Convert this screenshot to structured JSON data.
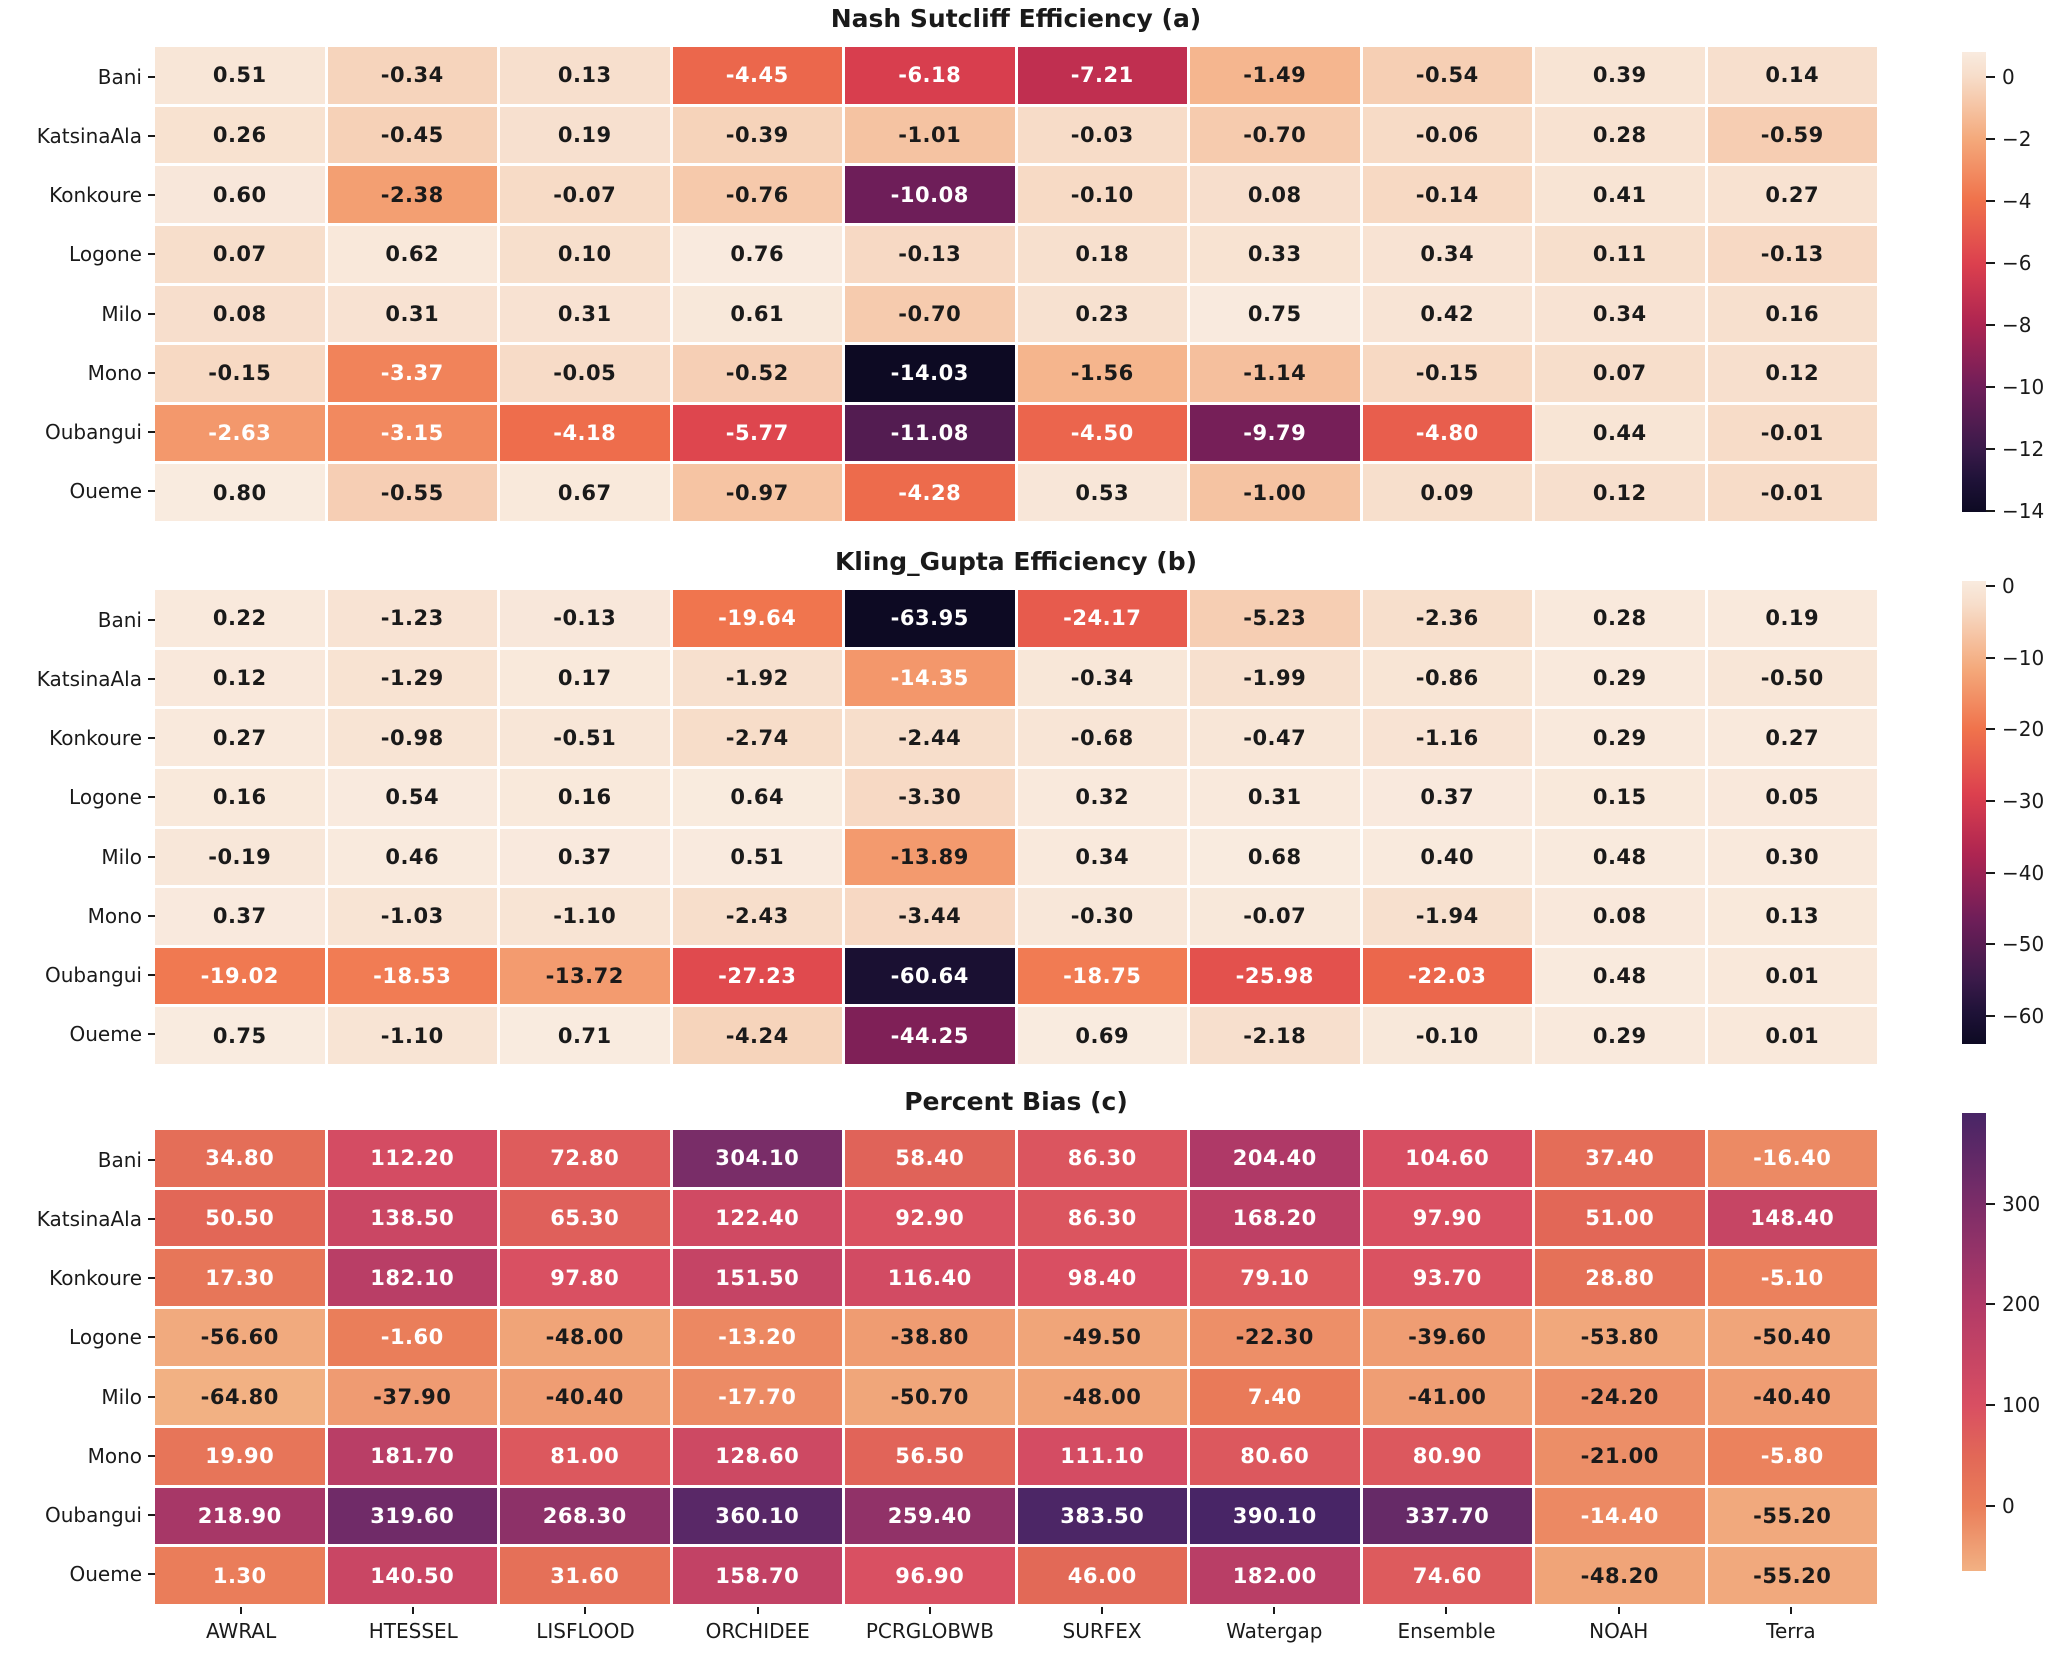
{
  "figure": {
    "background": "#ffffff",
    "annotation_dark_text_color": "#1a1a1a",
    "annotation_light_text_color": "#ffffff"
  },
  "chart_data": [
    {
      "type": "heatmap",
      "panel": "a",
      "title": "Nash Sutcliff Efficiency (a)",
      "rows": [
        "Bani",
        "KatsinaAla",
        "Konkoure",
        "Logone",
        "Milo",
        "Mono",
        "Oubangui",
        "Oueme"
      ],
      "columns": [
        "AWRAL",
        "HTESSEL",
        "LISFLOOD",
        "ORCHIDEE",
        "PCRGLOBWB",
        "SURFEX",
        "Watergap",
        "Ensemble",
        "NOAH",
        "Terra"
      ],
      "values": [
        [
          0.51,
          -0.34,
          0.13,
          -4.45,
          -6.18,
          -7.21,
          -1.49,
          -0.54,
          0.39,
          0.14
        ],
        [
          0.26,
          -0.45,
          0.19,
          -0.39,
          -1.01,
          -0.03,
          -0.7,
          -0.06,
          0.28,
          -0.59
        ],
        [
          0.6,
          -2.38,
          -0.07,
          -0.76,
          -10.08,
          -0.1,
          0.08,
          -0.14,
          0.41,
          0.27
        ],
        [
          0.07,
          0.62,
          0.1,
          0.76,
          -0.13,
          0.18,
          0.33,
          0.34,
          0.11,
          -0.13
        ],
        [
          0.08,
          0.31,
          0.31,
          0.61,
          -0.7,
          0.23,
          0.75,
          0.42,
          0.34,
          0.16
        ],
        [
          -0.15,
          -3.37,
          -0.05,
          -0.52,
          -14.03,
          -1.56,
          -1.14,
          -0.15,
          0.07,
          0.12
        ],
        [
          -2.63,
          -3.15,
          -4.18,
          -5.77,
          -11.08,
          -4.5,
          -9.79,
          -4.8,
          0.44,
          -0.01
        ],
        [
          0.8,
          -0.55,
          0.67,
          -0.97,
          -4.28,
          0.53,
          -1.0,
          0.09,
          0.12,
          -0.01
        ]
      ],
      "vmin": -14.03,
      "vmax": 0.8,
      "colormap": "rocket",
      "colormap_stops": [
        [
          0.0,
          "#0D0A23"
        ],
        [
          0.07,
          "#1F1238"
        ],
        [
          0.14,
          "#3B1A4A"
        ],
        [
          0.27,
          "#6F1E59"
        ],
        [
          0.41,
          "#AE2551"
        ],
        [
          0.54,
          "#DC404E"
        ],
        [
          0.68,
          "#F0734C"
        ],
        [
          0.81,
          "#F4A97B"
        ],
        [
          0.95,
          "#F7DECB"
        ],
        [
          1.0,
          "#F9EBDF"
        ]
      ],
      "white_text_rule": {
        "white_if": "lte",
        "value": -2.5
      },
      "colorbar_ticks": [
        {
          "v": 0,
          "label": "0"
        },
        {
          "v": -2,
          "label": "−2"
        },
        {
          "v": -4,
          "label": "−4"
        },
        {
          "v": -6,
          "label": "−6"
        },
        {
          "v": -8,
          "label": "−8"
        },
        {
          "v": -10,
          "label": "−10"
        },
        {
          "v": -12,
          "label": "−12"
        },
        {
          "v": -14,
          "label": "−14"
        }
      ],
      "show_x_labels": false
    },
    {
      "type": "heatmap",
      "panel": "b",
      "title": "Kling_Gupta Efficiency (b)",
      "rows": [
        "Bani",
        "KatsinaAla",
        "Konkoure",
        "Logone",
        "Milo",
        "Mono",
        "Oubangui",
        "Oueme"
      ],
      "columns": [
        "AWRAL",
        "HTESSEL",
        "LISFLOOD",
        "ORCHIDEE",
        "PCRGLOBWB",
        "SURFEX",
        "Watergap",
        "Ensemble",
        "NOAH",
        "Terra"
      ],
      "values": [
        [
          0.22,
          -1.23,
          -0.13,
          -19.64,
          -63.95,
          -24.17,
          -5.23,
          -2.36,
          0.28,
          0.19
        ],
        [
          0.12,
          -1.29,
          0.17,
          -1.92,
          -14.35,
          -0.34,
          -1.99,
          -0.86,
          0.29,
          -0.5
        ],
        [
          0.27,
          -0.98,
          -0.51,
          -2.74,
          -2.44,
          -0.68,
          -0.47,
          -1.16,
          0.29,
          0.27
        ],
        [
          0.16,
          0.54,
          0.16,
          0.64,
          -3.3,
          0.32,
          0.31,
          0.37,
          0.15,
          0.05
        ],
        [
          -0.19,
          0.46,
          0.37,
          0.51,
          -13.89,
          0.34,
          0.68,
          0.4,
          0.48,
          0.3
        ],
        [
          0.37,
          -1.03,
          -1.1,
          -2.43,
          -3.44,
          -0.3,
          -0.07,
          -1.94,
          0.08,
          0.13
        ],
        [
          -19.02,
          -18.53,
          -13.72,
          -27.23,
          -60.64,
          -18.75,
          -25.98,
          -22.03,
          0.48,
          0.01
        ],
        [
          0.75,
          -1.1,
          0.71,
          -4.24,
          -44.25,
          0.69,
          -2.18,
          -0.1,
          0.29,
          0.01
        ]
      ],
      "vmin": -63.95,
      "vmax": 0.75,
      "colormap": "rocket",
      "colormap_stops": [
        [
          0.0,
          "#0D0A23"
        ],
        [
          0.07,
          "#1F1238"
        ],
        [
          0.14,
          "#3B1A4A"
        ],
        [
          0.27,
          "#6F1E59"
        ],
        [
          0.41,
          "#AE2551"
        ],
        [
          0.54,
          "#DC404E"
        ],
        [
          0.68,
          "#F0734C"
        ],
        [
          0.81,
          "#F4A97B"
        ],
        [
          0.95,
          "#F7DECB"
        ],
        [
          1.0,
          "#F9EBDF"
        ]
      ],
      "white_text_rule": {
        "white_if": "lte",
        "value": -14.1
      },
      "colorbar_ticks": [
        {
          "v": 0,
          "label": "0"
        },
        {
          "v": -10,
          "label": "−10"
        },
        {
          "v": -20,
          "label": "−20"
        },
        {
          "v": -30,
          "label": "−30"
        },
        {
          "v": -40,
          "label": "−40"
        },
        {
          "v": -50,
          "label": "−50"
        },
        {
          "v": -60,
          "label": "−60"
        }
      ],
      "show_x_labels": false
    },
    {
      "type": "heatmap",
      "panel": "c",
      "title": "Percent Bias (c)",
      "rows": [
        "Bani",
        "KatsinaAla",
        "Konkoure",
        "Logone",
        "Milo",
        "Mono",
        "Oubangui",
        "Oueme"
      ],
      "columns": [
        "AWRAL",
        "HTESSEL",
        "LISFLOOD",
        "ORCHIDEE",
        "PCRGLOBWB",
        "SURFEX",
        "Watergap",
        "Ensemble",
        "NOAH",
        "Terra"
      ],
      "values": [
        [
          34.8,
          112.2,
          72.8,
          304.1,
          58.4,
          86.3,
          204.4,
          104.6,
          37.4,
          -16.4
        ],
        [
          50.5,
          138.5,
          65.3,
          122.4,
          92.9,
          86.3,
          168.2,
          97.9,
          51.0,
          148.4
        ],
        [
          17.3,
          182.1,
          97.8,
          151.5,
          116.4,
          98.4,
          79.1,
          93.7,
          28.8,
          -5.1
        ],
        [
          -56.6,
          -1.6,
          -48.0,
          -13.2,
          -38.8,
          -49.5,
          -22.3,
          -39.6,
          -53.8,
          -50.4
        ],
        [
          -64.8,
          -37.9,
          -40.4,
          -17.7,
          -50.7,
          -48.0,
          7.4,
          -41.0,
          -24.2,
          -40.4
        ],
        [
          19.9,
          181.7,
          81.0,
          128.6,
          56.5,
          111.1,
          80.6,
          80.9,
          -21.0,
          -5.8
        ],
        [
          218.9,
          319.6,
          268.3,
          360.1,
          259.4,
          383.5,
          390.1,
          337.7,
          -14.4,
          -55.2
        ],
        [
          1.3,
          140.5,
          31.6,
          158.7,
          96.9,
          46.0,
          182.0,
          74.6,
          -48.2,
          -55.2
        ]
      ],
      "vmin": -64.8,
      "vmax": 390.1,
      "colormap": "flare",
      "colormap_stops": [
        [
          0.0,
          "#F2B183"
        ],
        [
          0.14,
          "#EA7E5A"
        ],
        [
          0.25,
          "#E26857"
        ],
        [
          0.36,
          "#D94F62"
        ],
        [
          0.58,
          "#B23A67"
        ],
        [
          0.8,
          "#7C2D68"
        ],
        [
          1.0,
          "#482566"
        ]
      ],
      "white_text_rule": {
        "white_if": "gte",
        "value": -19.5
      },
      "colorbar_ticks": [
        {
          "v": 300,
          "label": "300"
        },
        {
          "v": 200,
          "label": "200"
        },
        {
          "v": 100,
          "label": "100"
        },
        {
          "v": 0,
          "label": "0"
        }
      ],
      "show_x_labels": true
    }
  ]
}
